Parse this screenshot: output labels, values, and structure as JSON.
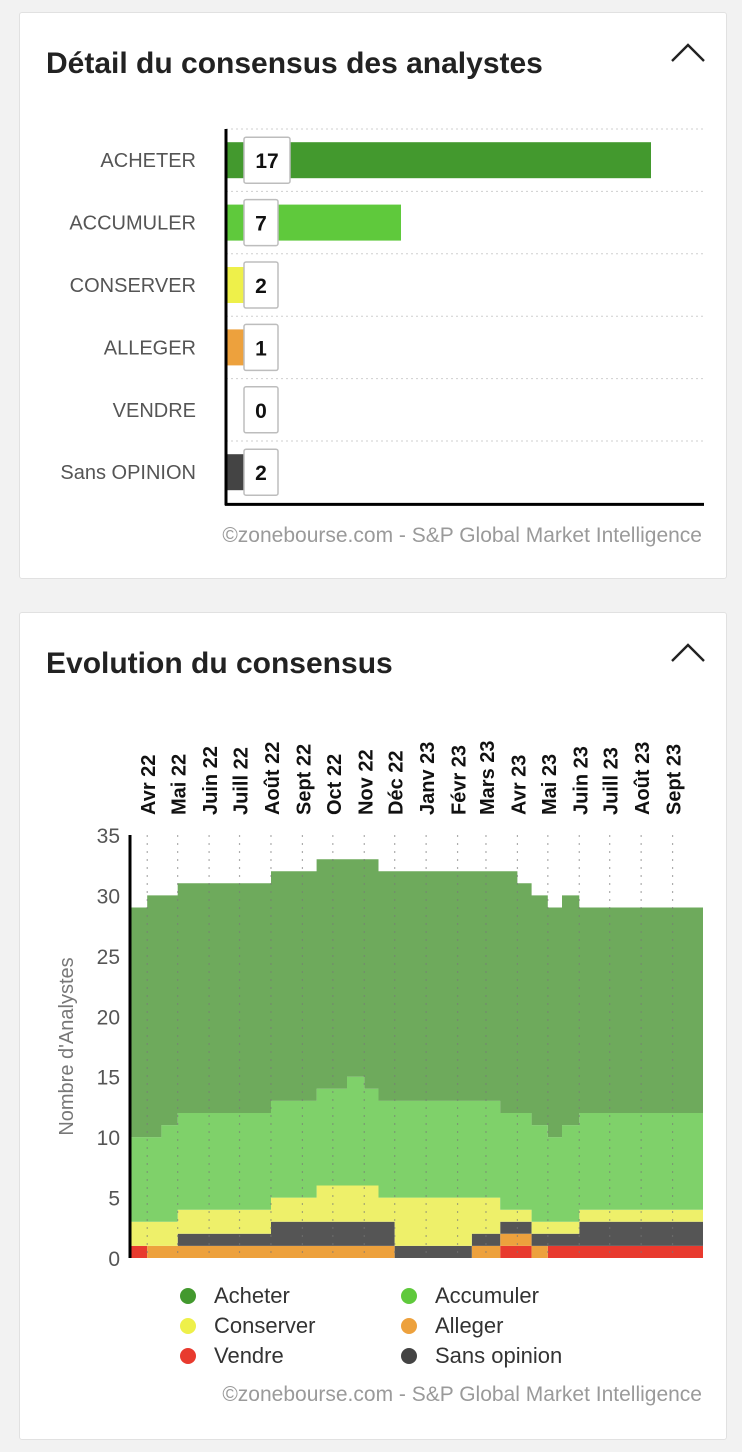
{
  "cards": {
    "detail": {
      "title": "Détail du consensus des analystes",
      "credit": "©zonebourse.com - S&P Global Market Intelligence"
    },
    "evolution": {
      "title": "Evolution du consensus",
      "credit": "©zonebourse.com - S&P Global Market Intelligence"
    }
  },
  "chart_data": [
    {
      "type": "bar",
      "orientation": "horizontal",
      "categories": [
        "ACHETER",
        "ACCUMULER",
        "CONSERVER",
        "ALLEGER",
        "VENDRE",
        "Sans OPINION"
      ],
      "values": [
        17,
        7,
        2,
        1,
        0,
        2
      ],
      "colors": [
        "#43992e",
        "#5fc93c",
        "#eef04a",
        "#eda13d",
        "#e83a2e",
        "#444444"
      ],
      "xlim": [
        0,
        18
      ],
      "grid": true
    },
    {
      "type": "area",
      "stacked": true,
      "x_labels": [
        "Avr 22",
        "Mai 22",
        "Juin 22",
        "Juill 22",
        "Août 22",
        "Sept 22",
        "Oct 22",
        "Nov 22",
        "Déc 22",
        "Janv 23",
        "Févr 23",
        "Mars 23",
        "Avr 23",
        "Mai 23",
        "Juin 23",
        "Juill 23",
        "Août 23",
        "Sept 23"
      ],
      "x": [
        "2022-03-15",
        "2022-04-01",
        "2022-04-15",
        "2022-05-01",
        "2022-05-15",
        "2022-06-01",
        "2022-06-15",
        "2022-07-01",
        "2022-07-15",
        "2022-08-01",
        "2022-08-15",
        "2022-09-01",
        "2022-09-15",
        "2022-10-01",
        "2022-10-15",
        "2022-11-01",
        "2022-11-15",
        "2022-12-01",
        "2022-12-15",
        "2023-01-01",
        "2023-01-15",
        "2023-02-01",
        "2023-02-15",
        "2023-03-01",
        "2023-03-15",
        "2023-04-01",
        "2023-04-15",
        "2023-05-01",
        "2023-05-15",
        "2023-06-01",
        "2023-06-15",
        "2023-07-01",
        "2023-07-15",
        "2023-08-01",
        "2023-08-15",
        "2023-09-01",
        "2023-09-15",
        "2023-10-01"
      ],
      "series": [
        {
          "name": "Vendre",
          "color": "#e83a2e",
          "values": [
            1,
            0,
            0,
            0,
            0,
            0,
            0,
            0,
            0,
            0,
            0,
            0,
            0,
            0,
            0,
            0,
            0,
            0,
            0,
            0,
            0,
            0,
            0,
            0,
            1,
            1,
            0,
            1,
            1,
            1,
            1,
            1,
            1,
            1,
            1,
            1,
            1,
            1
          ]
        },
        {
          "name": "Alleger",
          "color": "#eda13d",
          "values": [
            0,
            1,
            1,
            1,
            1,
            1,
            1,
            1,
            1,
            1,
            1,
            1,
            1,
            1,
            1,
            1,
            1,
            0,
            0,
            0,
            0,
            0,
            1,
            1,
            1,
            1,
            1,
            0,
            0,
            0,
            0,
            0,
            0,
            0,
            0,
            0,
            0,
            0
          ]
        },
        {
          "name": "Sans opinion",
          "color": "#555555",
          "values": [
            0,
            0,
            0,
            1,
            1,
            1,
            1,
            1,
            1,
            2,
            2,
            2,
            2,
            2,
            2,
            2,
            2,
            1,
            1,
            1,
            1,
            1,
            1,
            1,
            1,
            1,
            1,
            1,
            1,
            2,
            2,
            2,
            2,
            2,
            2,
            2,
            2,
            2
          ]
        },
        {
          "name": "Conserver",
          "color": "#eef06a",
          "values": [
            2,
            2,
            2,
            2,
            2,
            2,
            2,
            2,
            2,
            2,
            2,
            2,
            3,
            3,
            3,
            3,
            2,
            4,
            4,
            4,
            4,
            4,
            3,
            3,
            1,
            1,
            1,
            1,
            1,
            1,
            1,
            1,
            1,
            1,
            1,
            1,
            1,
            1
          ]
        },
        {
          "name": "Accumuler",
          "color": "#7fd16a",
          "values": [
            7,
            7,
            8,
            8,
            8,
            8,
            8,
            8,
            8,
            8,
            8,
            8,
            8,
            8,
            9,
            8,
            8,
            8,
            8,
            8,
            8,
            8,
            8,
            8,
            8,
            8,
            8,
            7,
            8,
            8,
            8,
            8,
            8,
            8,
            8,
            8,
            8,
            8
          ]
        },
        {
          "name": "Acheter",
          "color": "#6eaa5c",
          "values": [
            19,
            20,
            19,
            19,
            19,
            19,
            19,
            19,
            19,
            19,
            19,
            19,
            19,
            19,
            18,
            19,
            19,
            19,
            19,
            19,
            19,
            19,
            19,
            19,
            20,
            19,
            19,
            19,
            19,
            17,
            17,
            17,
            17,
            17,
            17,
            17,
            17,
            17
          ]
        }
      ],
      "ylabel": "Nombre d'Analystes",
      "ylim": [
        0,
        35
      ],
      "yticks": [
        0,
        5,
        10,
        15,
        20,
        25,
        30,
        35
      ]
    }
  ],
  "legend": [
    {
      "label": "Acheter",
      "color": "#43992e"
    },
    {
      "label": "Accumuler",
      "color": "#5fc93c"
    },
    {
      "label": "Conserver",
      "color": "#eef04a"
    },
    {
      "label": "Alleger",
      "color": "#eda13d"
    },
    {
      "label": "Vendre",
      "color": "#e83a2e"
    },
    {
      "label": "Sans opinion",
      "color": "#444444"
    }
  ]
}
